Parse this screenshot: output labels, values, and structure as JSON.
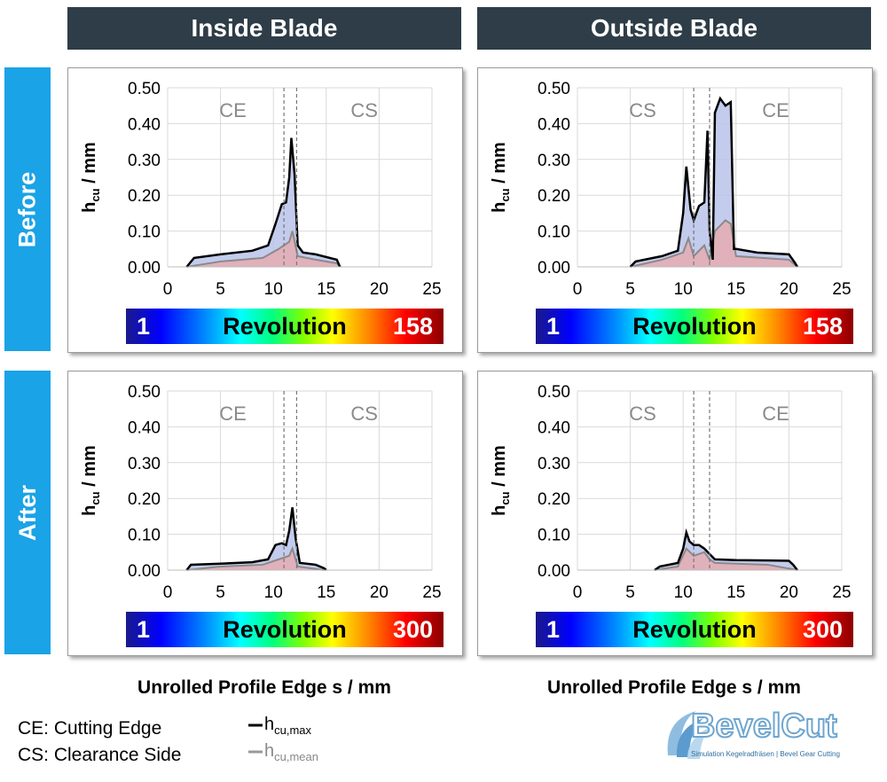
{
  "header": {
    "col1": "Inside Blade",
    "col2": "Outside Blade"
  },
  "rows": {
    "row1": "Before",
    "row2": "After"
  },
  "x_axis_label": "Unrolled Profile Edge s / mm",
  "legend": {
    "ce": "CE: Cutting Edge",
    "cs": "CS: Clearance Side",
    "max_main": "h",
    "max_sub": "cu,max",
    "mean_main": "h",
    "mean_sub": "cu,mean"
  },
  "logo": {
    "name": "BevelCut",
    "tagline": "Simulation Kegelradfräsen | Bevel Gear Cutting"
  },
  "colors": {
    "header_bg": "#2e3d47",
    "row_bg": "#1aa3e6",
    "max_line": "#000000",
    "mean_line": "#888888"
  },
  "chart_data": [
    {
      "type": "area",
      "panel": "Inside Blade / Before",
      "xlim": [
        0,
        25
      ],
      "ylim": [
        0,
        0.5
      ],
      "xticks": [
        "0",
        "5",
        "10",
        "15",
        "20",
        "25"
      ],
      "yticks": [
        "0.00",
        "0.10",
        "0.20",
        "0.30",
        "0.40",
        "0.50"
      ],
      "ylabel_main": "h",
      "ylabel_sub": "cu",
      "ylabel_unit": " / mm",
      "regions": [
        "CE",
        "CS"
      ],
      "boundaries": [
        11.0,
        12.2
      ],
      "colorbar": {
        "min": "1",
        "label": "Revolution",
        "max": "158"
      },
      "series": [
        {
          "name": "hcu,max",
          "x": [
            1.8,
            2.5,
            5,
            8,
            9.5,
            10.2,
            10.8,
            11.2,
            11.5,
            11.7,
            12.0,
            12.3,
            12.8,
            14,
            16,
            16.3
          ],
          "y": [
            0,
            0.025,
            0.035,
            0.045,
            0.06,
            0.12,
            0.175,
            0.18,
            0.25,
            0.36,
            0.26,
            0.06,
            0.04,
            0.035,
            0.02,
            0
          ]
        },
        {
          "name": "hcu,mean",
          "x": [
            1.8,
            5,
            9,
            10.5,
            11.5,
            11.8,
            12.3,
            14,
            16,
            16.3
          ],
          "y": [
            0,
            0.015,
            0.025,
            0.05,
            0.07,
            0.1,
            0.03,
            0.02,
            0.01,
            0
          ]
        }
      ]
    },
    {
      "type": "area",
      "panel": "Outside Blade / Before",
      "xlim": [
        0,
        25
      ],
      "ylim": [
        0,
        0.5
      ],
      "xticks": [
        "0",
        "5",
        "10",
        "15",
        "20",
        "25"
      ],
      "yticks": [
        "0.00",
        "0.10",
        "0.20",
        "0.30",
        "0.40",
        "0.50"
      ],
      "ylabel_main": "h",
      "ylabel_sub": "cu",
      "ylabel_unit": " / mm",
      "regions": [
        "CS",
        "CE"
      ],
      "boundaries": [
        11.0,
        12.5
      ],
      "colorbar": {
        "min": "1",
        "label": "Revolution",
        "max": "158"
      },
      "series": [
        {
          "name": "hcu,max",
          "x": [
            5,
            5.5,
            8,
            9.5,
            10.0,
            10.3,
            10.7,
            11.0,
            11.5,
            12.0,
            12.3,
            12.5,
            12.8,
            13.0,
            13.5,
            14.0,
            14.5,
            14.8,
            15,
            17,
            20,
            20.6,
            20.8
          ],
          "y": [
            0,
            0.015,
            0.03,
            0.045,
            0.15,
            0.28,
            0.16,
            0.13,
            0.17,
            0.18,
            0.38,
            0.1,
            0.02,
            0.43,
            0.47,
            0.45,
            0.46,
            0.05,
            0.05,
            0.04,
            0.035,
            0.01,
            0
          ]
        },
        {
          "name": "hcu,mean",
          "x": [
            5,
            8,
            10,
            10.5,
            11,
            12,
            12.5,
            13,
            14,
            14.5,
            15,
            20,
            20.8
          ],
          "y": [
            0,
            0.02,
            0.04,
            0.08,
            0.03,
            0.06,
            0.02,
            0.1,
            0.13,
            0.12,
            0.03,
            0.02,
            0
          ]
        }
      ]
    },
    {
      "type": "area",
      "panel": "Inside Blade / After",
      "xlim": [
        0,
        25
      ],
      "ylim": [
        0,
        0.5
      ],
      "xticks": [
        "0",
        "5",
        "10",
        "15",
        "20",
        "25"
      ],
      "yticks": [
        "0.00",
        "0.10",
        "0.20",
        "0.30",
        "0.40",
        "0.50"
      ],
      "ylabel_main": "h",
      "ylabel_sub": "cu",
      "ylabel_unit": " / mm",
      "regions": [
        "CE",
        "CS"
      ],
      "boundaries": [
        11.0,
        12.2
      ],
      "colorbar": {
        "min": "1",
        "label": "Revolution",
        "max": "300"
      },
      "series": [
        {
          "name": "hcu,max",
          "x": [
            1.8,
            2.2,
            5,
            8,
            9.5,
            10.2,
            10.8,
            11.2,
            11.5,
            11.8,
            12.1,
            12.5,
            14,
            14.8,
            15
          ],
          "y": [
            0,
            0.015,
            0.018,
            0.022,
            0.03,
            0.07,
            0.075,
            0.07,
            0.11,
            0.175,
            0.09,
            0.02,
            0.015,
            0.005,
            0
          ]
        },
        {
          "name": "hcu,mean",
          "x": [
            1.8,
            5,
            9,
            10.5,
            11.5,
            11.8,
            12.3,
            14.8
          ],
          "y": [
            0,
            0.01,
            0.015,
            0.03,
            0.04,
            0.06,
            0.01,
            0
          ]
        }
      ]
    },
    {
      "type": "area",
      "panel": "Outside Blade / After",
      "xlim": [
        0,
        25
      ],
      "ylim": [
        0,
        0.5
      ],
      "xticks": [
        "0",
        "5",
        "10",
        "15",
        "20",
        "25"
      ],
      "yticks": [
        "0.00",
        "0.10",
        "0.20",
        "0.30",
        "0.40",
        "0.50"
      ],
      "ylabel_main": "h",
      "ylabel_sub": "cu",
      "ylabel_unit": " / mm",
      "regions": [
        "CS",
        "CE"
      ],
      "boundaries": [
        11.0,
        12.5
      ],
      "colorbar": {
        "min": "1",
        "label": "Revolution",
        "max": "300"
      },
      "series": [
        {
          "name": "hcu,max",
          "x": [
            7.3,
            7.8,
            9.5,
            10.0,
            10.3,
            10.6,
            11.0,
            11.5,
            12.0,
            12.5,
            13,
            15,
            18,
            20,
            20.4,
            20.8
          ],
          "y": [
            0,
            0.01,
            0.02,
            0.06,
            0.105,
            0.08,
            0.07,
            0.07,
            0.06,
            0.045,
            0.03,
            0.028,
            0.027,
            0.026,
            0.015,
            0
          ]
        },
        {
          "name": "hcu,mean",
          "x": [
            7.3,
            9.5,
            10.3,
            11,
            12,
            12.5,
            13,
            18,
            20.8
          ],
          "y": [
            0,
            0.01,
            0.06,
            0.04,
            0.05,
            0.03,
            0.02,
            0.015,
            0
          ]
        }
      ]
    }
  ]
}
